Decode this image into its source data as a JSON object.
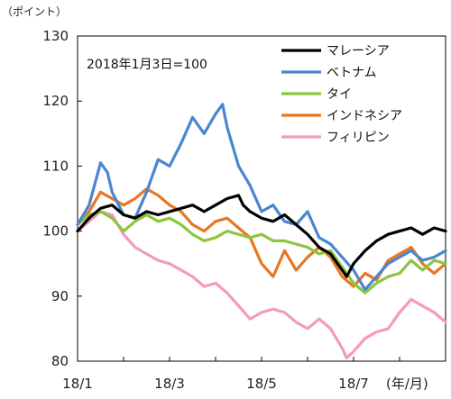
{
  "chart_data": {
    "type": "line",
    "unit_label": "（ポイント）",
    "x_unit_label": "(年/月)",
    "note": "2018年1月3日=100",
    "ylim": [
      80,
      130
    ],
    "y_ticks": [
      "130",
      "120",
      "110",
      "100",
      "90",
      "80"
    ],
    "x_ticks": [
      "18/1",
      "18/3",
      "18/5",
      "18/7"
    ],
    "x_range_months": [
      1,
      9
    ],
    "grid": false,
    "legend_position": "top-right",
    "series": [
      {
        "name": "マレーシア",
        "color": "#000000",
        "points": [
          [
            1.0,
            100.0
          ],
          [
            1.25,
            102.0
          ],
          [
            1.5,
            103.5
          ],
          [
            1.75,
            104.0
          ],
          [
            2.0,
            102.5
          ],
          [
            2.25,
            102.0
          ],
          [
            2.5,
            103.0
          ],
          [
            2.75,
            102.5
          ],
          [
            3.0,
            103.0
          ],
          [
            3.25,
            103.5
          ],
          [
            3.5,
            104.0
          ],
          [
            3.75,
            103.0
          ],
          [
            4.0,
            104.0
          ],
          [
            4.25,
            105.0
          ],
          [
            4.5,
            105.5
          ],
          [
            4.6,
            104.0
          ],
          [
            4.75,
            103.0
          ],
          [
            5.0,
            102.0
          ],
          [
            5.25,
            101.5
          ],
          [
            5.5,
            102.5
          ],
          [
            5.75,
            101.0
          ],
          [
            6.0,
            99.5
          ],
          [
            6.25,
            97.5
          ],
          [
            6.5,
            96.5
          ],
          [
            6.75,
            94.0
          ],
          [
            6.85,
            93.0
          ],
          [
            7.0,
            95.0
          ],
          [
            7.25,
            97.0
          ],
          [
            7.5,
            98.5
          ],
          [
            7.75,
            99.5
          ],
          [
            8.0,
            100.0
          ],
          [
            8.25,
            100.5
          ],
          [
            8.5,
            99.5
          ],
          [
            8.75,
            100.5
          ],
          [
            9.0,
            100.0
          ]
        ]
      },
      {
        "name": "ベトナム",
        "color": "#4a86d0",
        "points": [
          [
            1.0,
            101.0
          ],
          [
            1.25,
            104.0
          ],
          [
            1.5,
            110.5
          ],
          [
            1.65,
            109.0
          ],
          [
            1.75,
            106.0
          ],
          [
            2.0,
            102.5
          ],
          [
            2.25,
            102.0
          ],
          [
            2.5,
            106.0
          ],
          [
            2.75,
            111.0
          ],
          [
            3.0,
            110.0
          ],
          [
            3.25,
            113.5
          ],
          [
            3.5,
            117.5
          ],
          [
            3.75,
            115.0
          ],
          [
            4.0,
            118.0
          ],
          [
            4.15,
            119.5
          ],
          [
            4.25,
            116.0
          ],
          [
            4.5,
            110.0
          ],
          [
            4.75,
            107.0
          ],
          [
            5.0,
            103.0
          ],
          [
            5.25,
            104.0
          ],
          [
            5.5,
            101.5
          ],
          [
            5.75,
            101.0
          ],
          [
            6.0,
            103.0
          ],
          [
            6.25,
            99.0
          ],
          [
            6.5,
            98.0
          ],
          [
            6.75,
            96.0
          ],
          [
            7.0,
            94.0
          ],
          [
            7.25,
            91.0
          ],
          [
            7.5,
            93.0
          ],
          [
            7.75,
            95.0
          ],
          [
            8.0,
            96.0
          ],
          [
            8.25,
            97.0
          ],
          [
            8.5,
            95.5
          ],
          [
            8.75,
            96.0
          ],
          [
            9.0,
            97.0
          ]
        ]
      },
      {
        "name": "タイ",
        "color": "#8cc63f",
        "points": [
          [
            1.0,
            101.0
          ],
          [
            1.25,
            102.5
          ],
          [
            1.5,
            103.0
          ],
          [
            1.75,
            102.0
          ],
          [
            2.0,
            100.0
          ],
          [
            2.25,
            101.5
          ],
          [
            2.5,
            102.5
          ],
          [
            2.75,
            101.5
          ],
          [
            3.0,
            102.0
          ],
          [
            3.25,
            101.0
          ],
          [
            3.5,
            99.5
          ],
          [
            3.75,
            98.5
          ],
          [
            4.0,
            99.0
          ],
          [
            4.25,
            100.0
          ],
          [
            4.5,
            99.5
          ],
          [
            4.75,
            99.0
          ],
          [
            5.0,
            99.5
          ],
          [
            5.25,
            98.5
          ],
          [
            5.5,
            98.5
          ],
          [
            5.75,
            98.0
          ],
          [
            6.0,
            97.5
          ],
          [
            6.25,
            96.5
          ],
          [
            6.5,
            97.0
          ],
          [
            6.75,
            94.5
          ],
          [
            7.0,
            92.0
          ],
          [
            7.25,
            90.5
          ],
          [
            7.5,
            92.0
          ],
          [
            7.75,
            93.0
          ],
          [
            8.0,
            93.5
          ],
          [
            8.25,
            95.5
          ],
          [
            8.5,
            94.0
          ],
          [
            8.75,
            95.5
          ],
          [
            9.0,
            95.0
          ]
        ]
      },
      {
        "name": "インドネシア",
        "color": "#e87722",
        "points": [
          [
            1.0,
            101.0
          ],
          [
            1.25,
            103.0
          ],
          [
            1.5,
            106.0
          ],
          [
            1.75,
            105.0
          ],
          [
            2.0,
            104.0
          ],
          [
            2.25,
            105.0
          ],
          [
            2.5,
            106.5
          ],
          [
            2.75,
            105.5
          ],
          [
            3.0,
            104.0
          ],
          [
            3.25,
            103.0
          ],
          [
            3.5,
            101.0
          ],
          [
            3.75,
            100.0
          ],
          [
            4.0,
            101.5
          ],
          [
            4.25,
            102.0
          ],
          [
            4.5,
            100.5
          ],
          [
            4.75,
            99.0
          ],
          [
            5.0,
            95.0
          ],
          [
            5.25,
            93.0
          ],
          [
            5.5,
            97.0
          ],
          [
            5.75,
            94.0
          ],
          [
            6.0,
            96.0
          ],
          [
            6.25,
            97.5
          ],
          [
            6.5,
            96.0
          ],
          [
            6.75,
            93.0
          ],
          [
            7.0,
            91.5
          ],
          [
            7.25,
            93.5
          ],
          [
            7.5,
            92.5
          ],
          [
            7.75,
            95.5
          ],
          [
            8.0,
            96.5
          ],
          [
            8.25,
            97.5
          ],
          [
            8.5,
            95.0
          ],
          [
            8.75,
            93.5
          ],
          [
            9.0,
            95.0
          ]
        ]
      },
      {
        "name": "フィリピン",
        "color": "#f49ac1",
        "points": [
          [
            1.0,
            100.0
          ],
          [
            1.25,
            101.5
          ],
          [
            1.5,
            103.0
          ],
          [
            1.75,
            102.5
          ],
          [
            2.0,
            99.5
          ],
          [
            2.25,
            97.5
          ],
          [
            2.5,
            96.5
          ],
          [
            2.75,
            95.5
          ],
          [
            3.0,
            95.0
          ],
          [
            3.25,
            94.0
          ],
          [
            3.5,
            93.0
          ],
          [
            3.75,
            91.5
          ],
          [
            4.0,
            92.0
          ],
          [
            4.25,
            90.5
          ],
          [
            4.5,
            88.5
          ],
          [
            4.75,
            86.5
          ],
          [
            5.0,
            87.5
          ],
          [
            5.25,
            88.0
          ],
          [
            5.5,
            87.5
          ],
          [
            5.75,
            86.0
          ],
          [
            6.0,
            85.0
          ],
          [
            6.25,
            86.5
          ],
          [
            6.5,
            85.0
          ],
          [
            6.75,
            82.0
          ],
          [
            6.85,
            80.5
          ],
          [
            7.0,
            81.5
          ],
          [
            7.25,
            83.5
          ],
          [
            7.5,
            84.5
          ],
          [
            7.75,
            85.0
          ],
          [
            8.0,
            87.5
          ],
          [
            8.25,
            89.5
          ],
          [
            8.5,
            88.5
          ],
          [
            8.75,
            87.5
          ],
          [
            9.0,
            86.0
          ]
        ]
      }
    ]
  }
}
